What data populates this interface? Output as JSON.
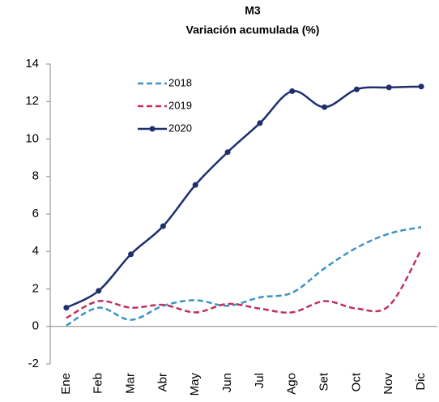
{
  "chart_data": {
    "type": "line",
    "title": "M3",
    "subtitle": "Variación acumulada (%)",
    "categories": [
      "Ene",
      "Feb",
      "Mar",
      "Abr",
      "May",
      "Jun",
      "Jul",
      "Ago",
      "Set",
      "Oct",
      "Nov",
      "Dic"
    ],
    "series": [
      {
        "name": "2018",
        "color": "#3d93c4",
        "line_style": "dashed",
        "markers": false,
        "values": [
          0.05,
          1.0,
          0.35,
          1.1,
          1.4,
          1.1,
          1.55,
          1.8,
          3.1,
          4.2,
          4.95,
          5.3
        ]
      },
      {
        "name": "2019",
        "color": "#c2305a",
        "line_style": "dashed",
        "markers": false,
        "values": [
          0.45,
          1.35,
          1.0,
          1.15,
          0.75,
          1.2,
          0.95,
          0.75,
          1.35,
          0.95,
          1.1,
          4.1
        ]
      },
      {
        "name": "2020",
        "color": "#1f2f6e",
        "line_style": "solid",
        "markers": true,
        "values": [
          1.0,
          1.9,
          3.85,
          5.35,
          7.55,
          9.3,
          10.85,
          12.55,
          11.7,
          12.65,
          12.75,
          12.8
        ]
      }
    ],
    "ylim": [
      -2,
      14
    ],
    "yticks": [
      -2,
      0,
      2,
      4,
      6,
      8,
      10,
      12,
      14
    ],
    "grid": false
  }
}
